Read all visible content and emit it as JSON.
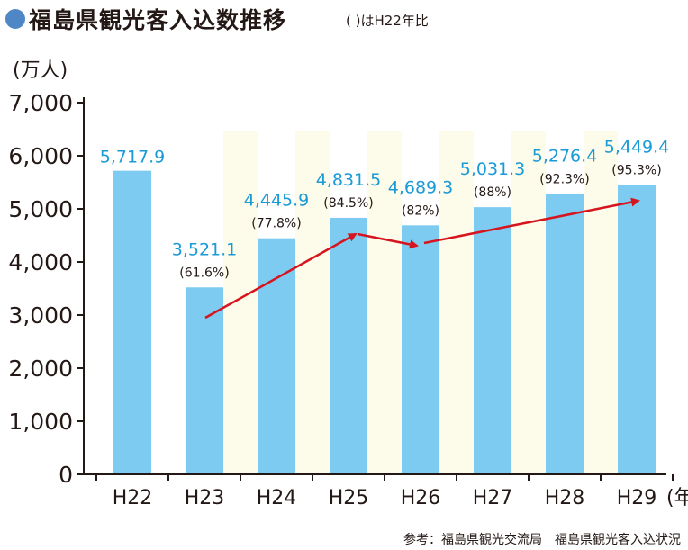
{
  "title": "福島県観光客入込数推移",
  "subtitle": "( )はH22年比",
  "colors": {
    "title_dot": "#4f86c6",
    "bar": "#7dcbf0",
    "band": "#fdfbe9",
    "value_label": "#1a9ad6",
    "arrow": "#d7141e",
    "axis": "#231815"
  },
  "chart_data": {
    "type": "bar",
    "ylabel": "(万人)",
    "x_unit": "(年)",
    "categories": [
      "H22",
      "H23",
      "H24",
      "H25",
      "H26",
      "H27",
      "H28",
      "H29"
    ],
    "values": [
      5717.9,
      3521.1,
      4445.9,
      4831.5,
      4689.3,
      5031.3,
      5276.4,
      5449.4
    ],
    "value_labels": [
      "5,717.9",
      "3,521.1",
      "4,445.9",
      "4,831.5",
      "4,689.3",
      "5,031.3",
      "5,276.4",
      "5,449.4"
    ],
    "ratio_labels": [
      "",
      "(61.6%)",
      "(77.8%)",
      "(84.5%)",
      "(82%)",
      "(88%)",
      "(92.3%)",
      "(95.3%)"
    ],
    "ylim": [
      0,
      7000
    ],
    "yticks": [
      0,
      1000,
      2000,
      3000,
      4000,
      5000,
      6000,
      7000
    ],
    "ytick_labels": [
      "0",
      "1,000",
      "2,000",
      "3,000",
      "4,000",
      "5,000",
      "6,000",
      "7,000"
    ],
    "grid": false,
    "trend_arrows": [
      {
        "from": "H23",
        "to": "H25"
      },
      {
        "from": "H25",
        "to": "H26"
      },
      {
        "from": "H26",
        "to": "H29"
      }
    ]
  },
  "source": "参考：福島県観光交流局　福島県観光客入込状況"
}
